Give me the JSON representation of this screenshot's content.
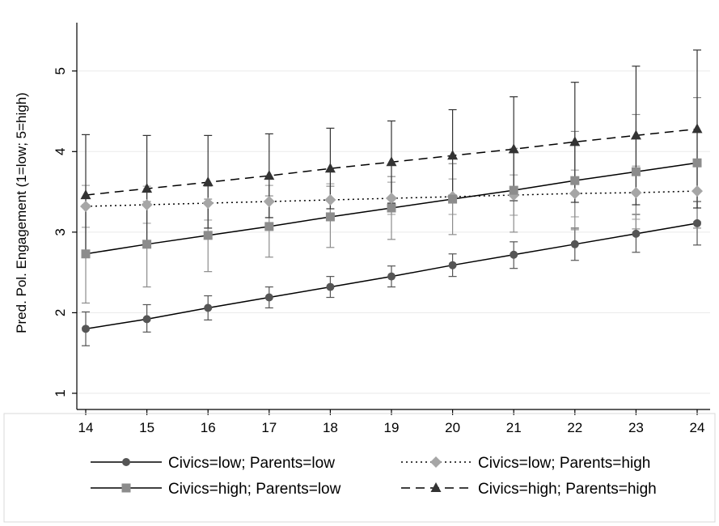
{
  "chart_data": {
    "type": "line",
    "xlabel": "",
    "ylabel": "Pred. Pol. Engagement (1=low; 5=high)",
    "x": [
      14,
      15,
      16,
      17,
      18,
      19,
      20,
      21,
      22,
      23,
      24
    ],
    "xlim": [
      14,
      24
    ],
    "ylim": [
      1,
      5.6
    ],
    "yticks": [
      1,
      2,
      3,
      4,
      5
    ],
    "grid": "horizontal",
    "legend_position": "bottom",
    "series": [
      {
        "name": "Civics=low; Parents=low",
        "marker": "circle",
        "dash": "solid",
        "color": "#555555",
        "values": [
          1.8,
          1.92,
          2.06,
          2.19,
          2.32,
          2.45,
          2.59,
          2.72,
          2.85,
          2.98,
          3.11
        ],
        "lower": [
          1.59,
          1.76,
          1.91,
          2.06,
          2.19,
          2.32,
          2.45,
          2.55,
          2.65,
          2.75,
          2.84
        ],
        "upper": [
          2.01,
          2.1,
          2.21,
          2.32,
          2.45,
          2.58,
          2.73,
          2.88,
          3.05,
          3.22,
          3.38
        ]
      },
      {
        "name": "Civics=low; Parents=high",
        "marker": "diamond",
        "dash": "dotted",
        "color": "#a6a6a6",
        "values": [
          3.32,
          3.34,
          3.36,
          3.38,
          3.4,
          3.42,
          3.44,
          3.46,
          3.48,
          3.49,
          3.51
        ],
        "lower": [
          3.06,
          3.11,
          3.15,
          3.18,
          3.2,
          3.22,
          3.22,
          3.21,
          3.19,
          3.16,
          3.13
        ],
        "upper": [
          3.58,
          3.57,
          3.57,
          3.58,
          3.6,
          3.62,
          3.66,
          3.71,
          3.77,
          3.82,
          3.89
        ]
      },
      {
        "name": "Civics=high; Parents=low",
        "marker": "square",
        "dash": "solid",
        "color": "#8c8c8c",
        "values": [
          2.73,
          2.85,
          2.96,
          3.07,
          3.19,
          3.3,
          3.41,
          3.52,
          3.64,
          3.75,
          3.86
        ],
        "lower": [
          2.12,
          2.32,
          2.51,
          2.69,
          2.81,
          2.91,
          2.97,
          3.0,
          3.03,
          3.04,
          3.05
        ],
        "upper": [
          3.34,
          3.38,
          3.41,
          3.45,
          3.57,
          3.69,
          3.85,
          4.04,
          4.25,
          4.46,
          4.67
        ]
      },
      {
        "name": "Civics=high; Parents=high",
        "marker": "triangle",
        "dash": "dashed",
        "color": "#333333",
        "values": [
          3.46,
          3.54,
          3.62,
          3.7,
          3.79,
          3.87,
          3.95,
          4.03,
          4.12,
          4.2,
          4.28
        ],
        "lower": [
          2.71,
          2.89,
          3.05,
          3.18,
          3.29,
          3.36,
          3.39,
          3.39,
          3.37,
          3.34,
          3.3
        ],
        "upper": [
          4.21,
          4.2,
          4.2,
          4.22,
          4.29,
          4.38,
          4.52,
          4.68,
          4.86,
          5.06,
          5.26
        ]
      }
    ]
  },
  "legend": {
    "items": [
      {
        "label": "Civics=low; Parents=low"
      },
      {
        "label": "Civics=low; Parents=high"
      },
      {
        "label": "Civics=high; Parents=low"
      },
      {
        "label": "Civics=high; Parents=high"
      }
    ]
  }
}
